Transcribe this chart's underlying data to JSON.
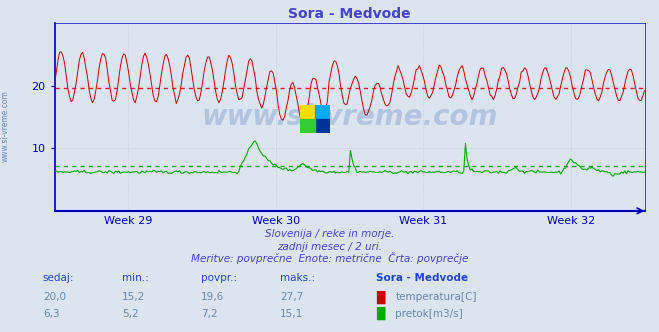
{
  "title": "Sora - Medvode",
  "title_color": "#4444cc",
  "bg_color": "#dce4f0",
  "plot_bg_color": "#dce4f0",
  "grid_color": "#c0c8d8",
  "axis_color": "#0000bb",
  "x_tick_labels": [
    "Week 29",
    "Week 30",
    "Week 31",
    "Week 32"
  ],
  "y_ticks": [
    10,
    20
  ],
  "ylim": [
    0,
    30
  ],
  "temp_color": "#cc0000",
  "flow_color": "#00aa00",
  "avg_temp_color": "#dd2222",
  "avg_flow_color": "#00aa00",
  "avg_temp": 19.6,
  "avg_flow": 7.2,
  "temp_min": 15.2,
  "temp_max": 27.7,
  "temp_current": 20.0,
  "flow_min": 5.2,
  "flow_max": 15.1,
  "flow_current": 6.3,
  "n_points": 360,
  "subtitle1": "Slovenija / reke in morje.",
  "subtitle2": "zadnji mesec / 2 uri.",
  "subtitle3": "Meritve: povprečne  Enote: metrične  Črta: povprečje",
  "label_sedaj": "sedaj:",
  "label_min": "min.:",
  "label_povpr": "povpr.:",
  "label_maks": "maks.:",
  "label_station": "Sora - Medvode",
  "label_temp": "temperatura[C]",
  "label_flow": "pretok[m3/s]",
  "watermark": "www.si-vreme.com",
  "watermark_color": "#2255aa",
  "sidebar_text": "www.si-vreme.com",
  "sidebar_color": "#6688bb"
}
